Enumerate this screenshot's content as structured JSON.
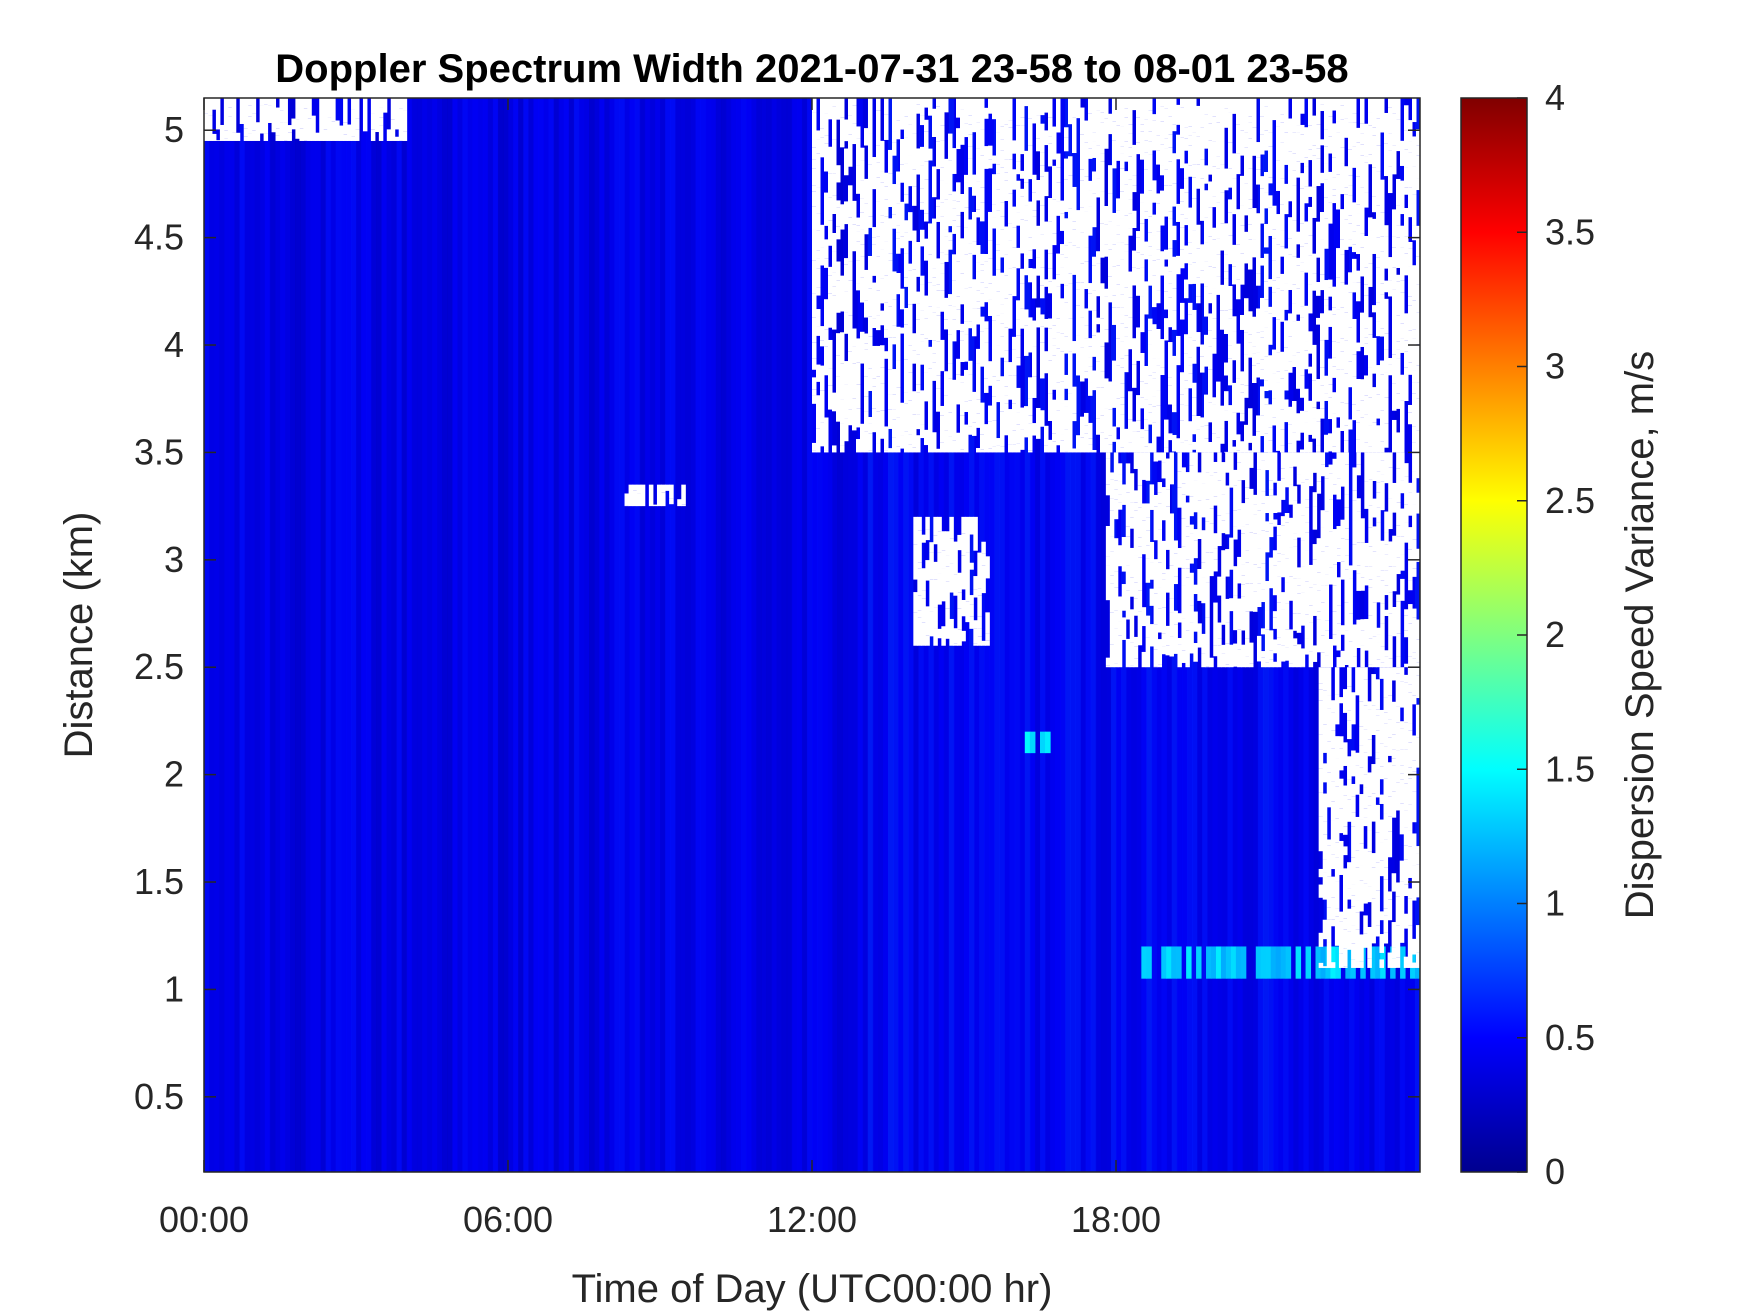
{
  "chart_data": {
    "type": "heatmap",
    "title": "Doppler Spectrum Width 2021-07-31 23-58 to 08-01 23-58",
    "xlabel": "Time of Day (UTC00:00 hr)",
    "ylabel": "Distance (km)",
    "colorbar_label": "Dispersion Speed Variance, m/s",
    "colormap": "jet",
    "xlim": [
      0,
      24
    ],
    "ylim": [
      0.15,
      5.15
    ],
    "clim": [
      0,
      4
    ],
    "x_ticks": [
      {
        "value": 0,
        "label": "00:00"
      },
      {
        "value": 6,
        "label": "06:00"
      },
      {
        "value": 12,
        "label": "12:00"
      },
      {
        "value": 18,
        "label": "18:00"
      }
    ],
    "y_ticks": [
      {
        "value": 0.5,
        "label": "0.5"
      },
      {
        "value": 1,
        "label": "1"
      },
      {
        "value": 1.5,
        "label": "1.5"
      },
      {
        "value": 2,
        "label": "2"
      },
      {
        "value": 2.5,
        "label": "2.5"
      },
      {
        "value": 3,
        "label": "3"
      },
      {
        "value": 3.5,
        "label": "3.5"
      },
      {
        "value": 4,
        "label": "4"
      },
      {
        "value": 4.5,
        "label": "4.5"
      },
      {
        "value": 5,
        "label": "5"
      }
    ],
    "colorbar_ticks": [
      {
        "value": 0,
        "label": "0"
      },
      {
        "value": 0.5,
        "label": "0.5"
      },
      {
        "value": 1,
        "label": "1"
      },
      {
        "value": 1.5,
        "label": "1.5"
      },
      {
        "value": 2,
        "label": "2"
      },
      {
        "value": 2.5,
        "label": "2.5"
      },
      {
        "value": 3,
        "label": "3"
      },
      {
        "value": 3.5,
        "label": "3.5"
      },
      {
        "value": 4,
        "label": "4"
      }
    ],
    "data_summary": {
      "typical_value_m_per_s": 0.4,
      "no_data_color": "#ffffff",
      "no_data_regions": [
        {
          "x_start_hr": 12.0,
          "x_end_hr": 24.0,
          "y_bottom_km": 3.5,
          "y_top_km": 5.15
        },
        {
          "x_start_hr": 17.8,
          "x_end_hr": 24.0,
          "y_bottom_km": 2.5,
          "y_top_km": 3.5
        },
        {
          "x_start_hr": 22.0,
          "x_end_hr": 24.0,
          "y_bottom_km": 1.1,
          "y_top_km": 2.5
        },
        {
          "x_start_hr": 0.0,
          "x_end_hr": 4.0,
          "y_bottom_km": 4.95,
          "y_top_km": 5.15
        },
        {
          "x_start_hr": 14.0,
          "x_end_hr": 15.5,
          "y_bottom_km": 2.6,
          "y_top_km": 3.2
        },
        {
          "x_start_hr": 8.3,
          "x_end_hr": 9.5,
          "y_bottom_km": 3.25,
          "y_top_km": 3.35
        }
      ],
      "elevated_regions": [
        {
          "x_start_hr": 18.5,
          "x_end_hr": 24.0,
          "y_bottom_km": 1.05,
          "y_top_km": 1.2,
          "value_m_per_s": 1.3
        },
        {
          "x_start_hr": 16.2,
          "x_end_hr": 16.7,
          "y_bottom_km": 2.1,
          "y_top_km": 2.2,
          "value_m_per_s": 1.4
        }
      ]
    }
  }
}
